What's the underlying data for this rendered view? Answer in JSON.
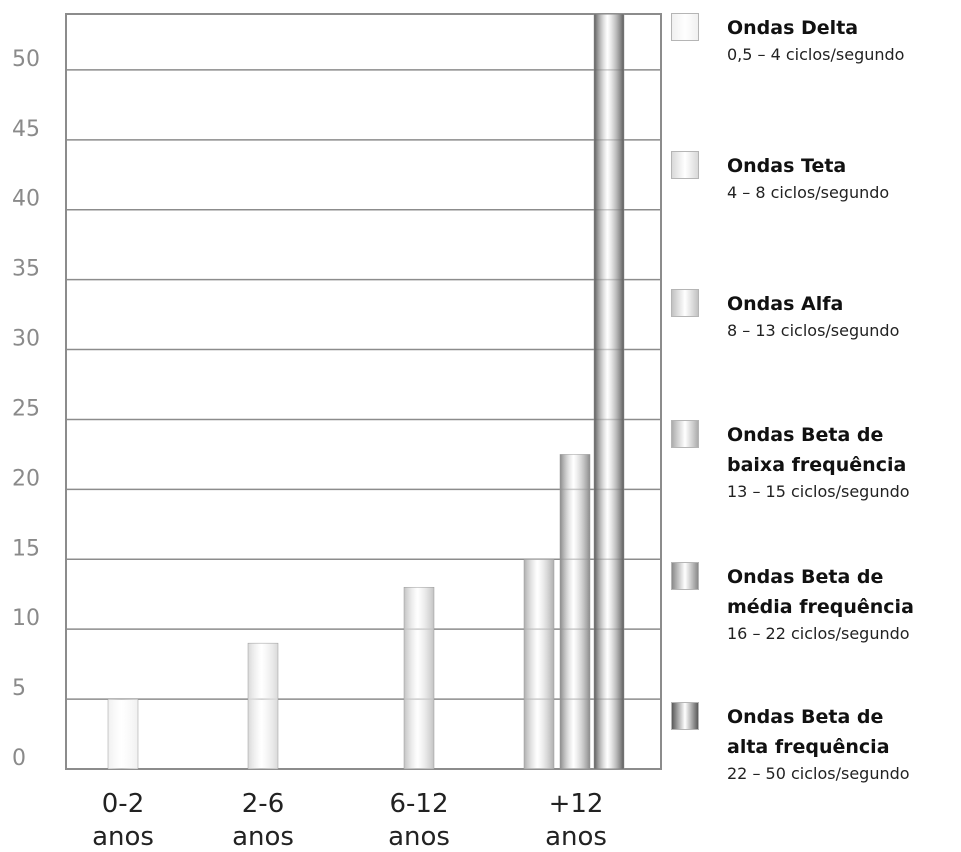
{
  "chart_data": {
    "type": "bar",
    "title": "",
    "xlabel": "",
    "ylabel": "",
    "ylim": [
      0,
      54
    ],
    "yticks": [
      0,
      5,
      10,
      15,
      20,
      25,
      30,
      35,
      40,
      45,
      50
    ],
    "grid": true,
    "legend_position": "right",
    "categories": [
      {
        "line1": "0-2",
        "line2": "anos"
      },
      {
        "line1": "2-6",
        "line2": "anos"
      },
      {
        "line1": "6-12",
        "line2": "anos"
      },
      {
        "line1": "+12",
        "line2": "anos"
      }
    ],
    "bars": [
      {
        "category": "0-2 anos",
        "series": "Ondas Delta",
        "value": 5
      },
      {
        "category": "2-6 anos",
        "series": "Ondas Teta",
        "value": 9
      },
      {
        "category": "6-12 anos",
        "series": "Ondas Alfa",
        "value": 13
      },
      {
        "category": "+12 anos",
        "series": "Ondas Beta de baixa frequência",
        "value": 15
      },
      {
        "category": "+12 anos",
        "series": "Ondas Beta de média frequência",
        "value": 22.5
      },
      {
        "category": "+12 anos",
        "series": "Ondas Beta de alta frequência",
        "value": 54
      }
    ],
    "series": [
      {
        "name_lines": [
          "Ondas Delta"
        ],
        "range": "0,5 – 4 ciclos/segundo",
        "color": "#f0f0f0"
      },
      {
        "name_lines": [
          "Ondas Teta"
        ],
        "range": "4 – 8 ciclos/segundo",
        "color": "#d9d9d9"
      },
      {
        "name_lines": [
          "Ondas Alfa"
        ],
        "range": "8 – 13 ciclos/segundo",
        "color": "#c2c2c2"
      },
      {
        "name_lines": [
          "Ondas Beta de",
          "baixa frequência"
        ],
        "range": "13 – 15 ciclos/segundo",
        "color": "#adadad"
      },
      {
        "name_lines": [
          "Ondas Beta de",
          "média frequência"
        ],
        "range": "16 – 22 ciclos/segundo",
        "color": "#8a8a8a"
      },
      {
        "name_lines": [
          "Ondas Beta de",
          "alta frequência"
        ],
        "range": "22 – 50 ciclos/segundo",
        "color": "#5a5a5a"
      }
    ]
  }
}
